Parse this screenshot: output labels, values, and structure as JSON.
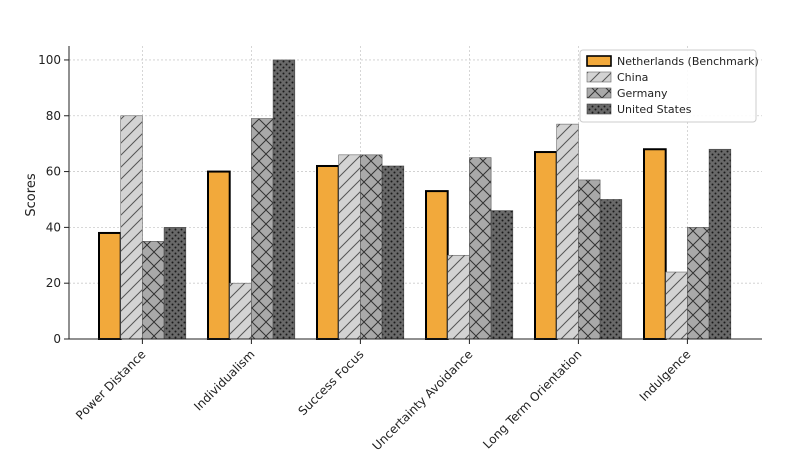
{
  "chart_data": {
    "type": "bar",
    "title": "",
    "xlabel": "",
    "ylabel": "Scores",
    "ylim": [
      0,
      105
    ],
    "yticks": [
      0,
      20,
      40,
      60,
      80,
      100
    ],
    "grid": true,
    "legend_position": "top-right",
    "categories": [
      "Power Distance",
      "Individualism",
      "Success Focus",
      "Uncertainty Avoidance",
      "Long Term Orientation",
      "Indulgence"
    ],
    "series": [
      {
        "name": "Netherlands (Benchmark)",
        "values": [
          38,
          60,
          62,
          53,
          67,
          68
        ],
        "color": "#f2a93b",
        "pattern": "solid",
        "edge": "#000000"
      },
      {
        "name": "China",
        "values": [
          80,
          20,
          66,
          30,
          77,
          24
        ],
        "color": "#d3d3d3",
        "pattern": "diagonal",
        "edge": "#666666"
      },
      {
        "name": "Germany",
        "values": [
          35,
          79,
          66,
          65,
          57,
          40
        ],
        "color": "#a9a9a9",
        "pattern": "crosshatch",
        "edge": "#555555"
      },
      {
        "name": "United States",
        "values": [
          40,
          100,
          62,
          46,
          50,
          68
        ],
        "color": "#696969",
        "pattern": "dots",
        "edge": "#444444"
      }
    ]
  }
}
